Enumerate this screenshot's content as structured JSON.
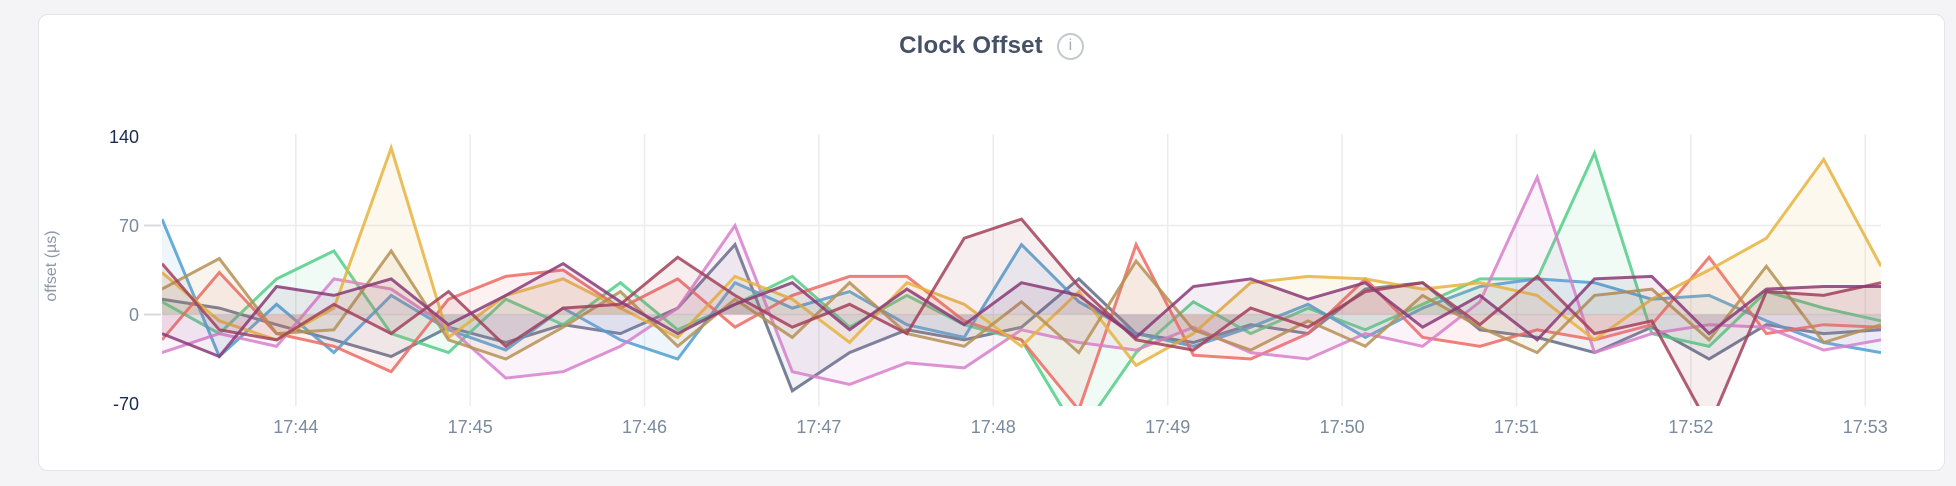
{
  "header": {
    "title": "Clock Offset",
    "info_icon_glyph": "i"
  },
  "colors": {
    "page_bg": "#f4f4f6",
    "card_bg": "#ffffff",
    "card_border": "#e3e4e8",
    "title": "#475166",
    "grid": "#ececef",
    "tick_dash": "#d9dade",
    "axis_label": "#8e96a8",
    "tick_label_gray": "#7b8a9e",
    "tick_label_dark": "#1c2b4d",
    "info_icon_border": "#c3c7ce",
    "info_icon_glyph": "#a6adb6"
  },
  "chart_data": {
    "type": "line",
    "title": "Clock Offset",
    "xlabel": "",
    "ylabel": "offset (µs)",
    "ylim": [
      -72,
      142
    ],
    "legend": "none",
    "grid": "on",
    "y_ticks": [
      {
        "value": 140,
        "label": "140",
        "emphasis": true
      },
      {
        "value": 70,
        "label": "70",
        "emphasis": false
      },
      {
        "value": 0,
        "label": "0",
        "emphasis": false
      },
      {
        "value": -70,
        "label": "-70",
        "emphasis": true
      }
    ],
    "y_gridlines": [
      70,
      0
    ],
    "x_range_minutes": [
      43.233,
      53.09
    ],
    "x_ticks": [
      {
        "minute": 44,
        "label": "17:44"
      },
      {
        "minute": 45,
        "label": "17:45"
      },
      {
        "minute": 46,
        "label": "17:46"
      },
      {
        "minute": 47,
        "label": "17:47"
      },
      {
        "minute": 48,
        "label": "17:48"
      },
      {
        "minute": 49,
        "label": "17:49"
      },
      {
        "minute": 50,
        "label": "17:50"
      },
      {
        "minute": 51,
        "label": "17:51"
      },
      {
        "minute": 52,
        "label": "17:52"
      },
      {
        "minute": 53,
        "label": "17:53"
      }
    ],
    "sample_interval_seconds": 20,
    "line_width": 3,
    "line_opacity": 0.85,
    "fill_opacity": 0.09,
    "series": [
      {
        "name": "slate",
        "color": "#5F6C87",
        "values": [
          12,
          5,
          -8,
          -20,
          -33,
          -10,
          -22,
          -8,
          -15,
          5,
          55,
          -60,
          -30,
          -12,
          -20,
          -10,
          28,
          -15,
          -22,
          -8,
          -15,
          20,
          25,
          -12,
          -18,
          -30,
          -10,
          -35,
          -8,
          -15,
          -12
        ]
      },
      {
        "name": "green",
        "color": "#52CE86",
        "values": [
          10,
          -15,
          28,
          50,
          -15,
          -30,
          12,
          -8,
          25,
          -12,
          8,
          30,
          -10,
          15,
          -8,
          -20,
          -95,
          -30,
          10,
          -15,
          5,
          -12,
          8,
          28,
          28,
          127,
          -15,
          -25,
          18,
          5,
          -5
        ]
      },
      {
        "name": "blue",
        "color": "#4E9FD1",
        "values": [
          75,
          -33,
          8,
          -30,
          15,
          -12,
          -28,
          5,
          -20,
          -35,
          25,
          5,
          18,
          -8,
          -18,
          55,
          10,
          -15,
          -25,
          -10,
          8,
          -18,
          5,
          22,
          28,
          25,
          12,
          15,
          -5,
          -22,
          -30
        ]
      },
      {
        "name": "salmon",
        "color": "#EC6A63",
        "values": [
          -20,
          33,
          -15,
          -25,
          -45,
          12,
          30,
          35,
          5,
          28,
          -10,
          15,
          30,
          30,
          -5,
          -20,
          -75,
          55,
          -32,
          -35,
          -15,
          28,
          -18,
          -25,
          -12,
          -20,
          -8,
          45,
          -15,
          -8,
          -10
        ]
      },
      {
        "name": "orchid",
        "color": "#D77FCB",
        "values": [
          -30,
          -15,
          -25,
          28,
          20,
          -10,
          -50,
          -45,
          -25,
          5,
          70,
          -45,
          -55,
          -38,
          -42,
          -12,
          -22,
          -28,
          -10,
          -30,
          -35,
          -15,
          -25,
          10,
          108,
          -30,
          -15,
          -8,
          -10,
          -28,
          -20
        ]
      },
      {
        "name": "gold",
        "color": "#E6B33E",
        "values": [
          33,
          -5,
          -20,
          5,
          131,
          -18,
          15,
          28,
          5,
          -18,
          30,
          12,
          -22,
          25,
          8,
          -25,
          18,
          -40,
          -15,
          25,
          30,
          28,
          20,
          25,
          15,
          -20,
          12,
          35,
          60,
          122,
          38
        ]
      },
      {
        "name": "khaki",
        "color": "#B59153",
        "values": [
          20,
          44,
          -15,
          -12,
          50,
          -20,
          -35,
          -10,
          18,
          -25,
          12,
          -18,
          25,
          -15,
          -25,
          10,
          -30,
          42,
          -12,
          -28,
          -5,
          -25,
          15,
          -10,
          -30,
          15,
          20,
          -20,
          38,
          -22,
          -8
        ]
      },
      {
        "name": "maroon",
        "color": "#A3415B",
        "values": [
          40,
          -12,
          -20,
          8,
          -15,
          18,
          -25,
          5,
          8,
          45,
          15,
          -10,
          8,
          -15,
          60,
          75,
          22,
          -20,
          -28,
          5,
          -10,
          18,
          25,
          -8,
          30,
          -15,
          -5,
          -88,
          18,
          15,
          25
        ]
      },
      {
        "name": "purple",
        "color": "#8A3978",
        "values": [
          -15,
          -33,
          22,
          15,
          28,
          -8,
          15,
          40,
          10,
          -15,
          8,
          25,
          -12,
          20,
          -8,
          25,
          15,
          -18,
          22,
          28,
          12,
          25,
          -10,
          15,
          -20,
          28,
          30,
          -15,
          20,
          22,
          22
        ]
      }
    ]
  }
}
